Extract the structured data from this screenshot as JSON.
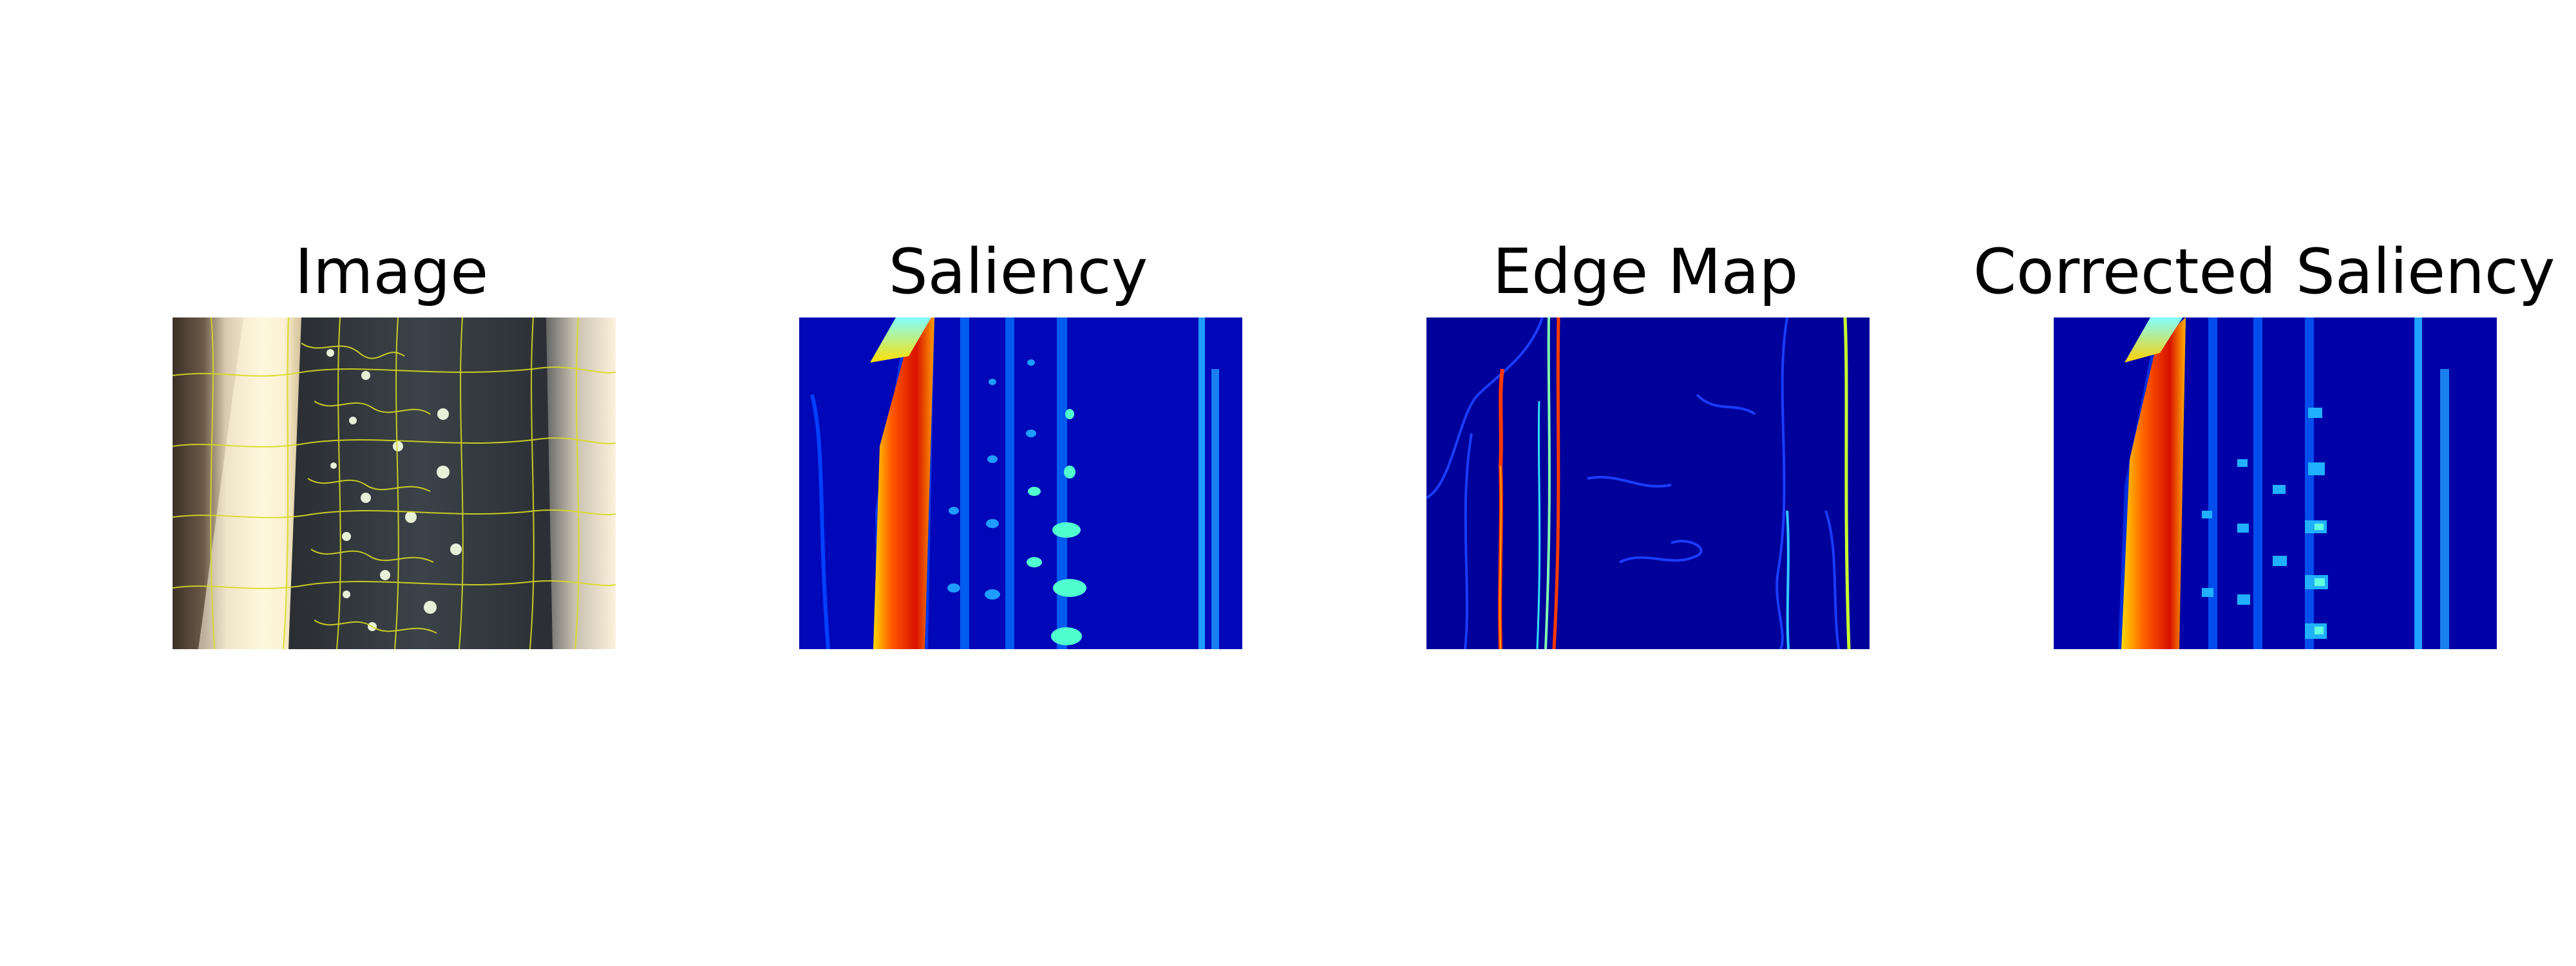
{
  "figure": {
    "panels": [
      {
        "title": "Image"
      },
      {
        "title": "Saliency"
      },
      {
        "title": "Edge Map"
      },
      {
        "title": "Corrected Saliency"
      }
    ]
  }
}
